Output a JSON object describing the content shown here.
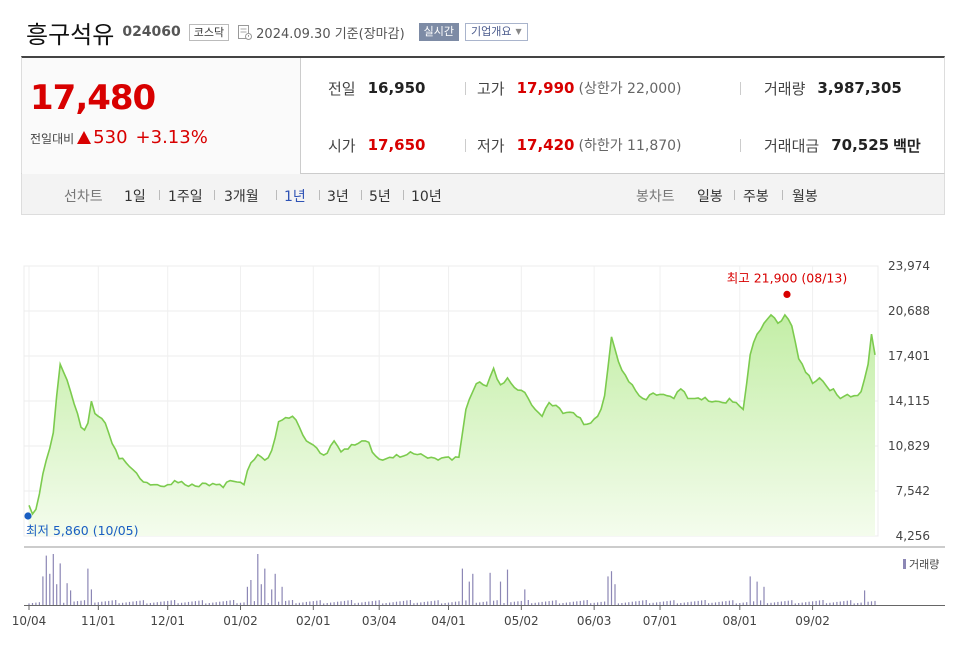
{
  "stock": {
    "name": "흥구석유",
    "code": "024060",
    "market": "코스닥",
    "date": "2024.09.30 기준(장마감)",
    "realtime_label": "실시간",
    "corp_info_label": "기업개요",
    "price": "17,480",
    "change_label": "전일대비",
    "change": "530",
    "change_pct": "+3.13%",
    "direction": "up"
  },
  "metrics": {
    "prev_close": {
      "label": "전일",
      "value": "16,950"
    },
    "open": {
      "label": "시가",
      "value": "17,650"
    },
    "high": {
      "label": "고가",
      "value": "17,990",
      "limit": "(상한가 22,000)"
    },
    "low": {
      "label": "저가",
      "value": "17,420",
      "limit": "(하한가 11,870)"
    },
    "volume": {
      "label": "거래량",
      "value": "3,987,305"
    },
    "amount": {
      "label": "거래대금",
      "value": "70,525",
      "unit": "백만"
    }
  },
  "tabs": {
    "line_label": "선차트",
    "periods": [
      "1일",
      "1주일",
      "3개월",
      "1년",
      "3년",
      "5년",
      "10년"
    ],
    "active_period": "1년",
    "candle_label": "봉차트",
    "candle_periods": [
      "일봉",
      "주봉",
      "월봉"
    ]
  },
  "colors": {
    "up": "#d80000",
    "low_marker": "#1a5ec2",
    "line": "#7ccb4e",
    "fill_top": "#c3eea6",
    "fill_bottom": "#f4fced",
    "volume_bar": "#8c87b5"
  },
  "chart_data": {
    "type": "area",
    "title": "",
    "xlabel": "",
    "ylabel": "",
    "ylim": [
      4256,
      23974
    ],
    "y_ticks": [
      "23,974",
      "20,688",
      "17,401",
      "14,115",
      "10,829",
      "7,542",
      "4,256"
    ],
    "x_ticks": [
      {
        "label": "10/04",
        "i": 0
      },
      {
        "label": "11/01",
        "i": 20
      },
      {
        "label": "12/01",
        "i": 40
      },
      {
        "label": "01/02",
        "i": 61
      },
      {
        "label": "02/01",
        "i": 82
      },
      {
        "label": "03/04",
        "i": 101
      },
      {
        "label": "04/01",
        "i": 121
      },
      {
        "label": "05/02",
        "i": 142
      },
      {
        "label": "06/03",
        "i": 163
      },
      {
        "label": "07/01",
        "i": 182
      },
      {
        "label": "08/01",
        "i": 205
      },
      {
        "label": "09/02",
        "i": 226
      }
    ],
    "x_count": 245,
    "grid": true,
    "keypoints": [
      [
        0,
        6500
      ],
      [
        1,
        5860
      ],
      [
        2,
        6200
      ],
      [
        4,
        8800
      ],
      [
        5,
        9800
      ],
      [
        7,
        11800
      ],
      [
        8,
        14500
      ],
      [
        9,
        16800
      ],
      [
        10,
        16200
      ],
      [
        12,
        14800
      ],
      [
        14,
        13200
      ],
      [
        15,
        12200
      ],
      [
        16,
        12000
      ],
      [
        17,
        12500
      ],
      [
        18,
        14100
      ],
      [
        19,
        13200
      ],
      [
        20,
        13000
      ],
      [
        22,
        12500
      ],
      [
        24,
        11000
      ],
      [
        26,
        9900
      ],
      [
        28,
        9600
      ],
      [
        30,
        9100
      ],
      [
        33,
        8200
      ],
      [
        36,
        8000
      ],
      [
        40,
        8000
      ],
      [
        42,
        8300
      ],
      [
        45,
        8000
      ],
      [
        48,
        7900
      ],
      [
        51,
        8100
      ],
      [
        54,
        8000
      ],
      [
        56,
        7800
      ],
      [
        58,
        8300
      ],
      [
        60,
        8200
      ],
      [
        62,
        8000
      ],
      [
        64,
        9600
      ],
      [
        66,
        10200
      ],
      [
        68,
        9800
      ],
      [
        70,
        10500
      ],
      [
        72,
        12600
      ],
      [
        74,
        12900
      ],
      [
        76,
        13000
      ],
      [
        78,
        12200
      ],
      [
        80,
        11200
      ],
      [
        82,
        10900
      ],
      [
        84,
        10300
      ],
      [
        86,
        10300
      ],
      [
        88,
        11200
      ],
      [
        90,
        10400
      ],
      [
        92,
        10600
      ],
      [
        94,
        10900
      ],
      [
        96,
        11200
      ],
      [
        98,
        11100
      ],
      [
        100,
        10100
      ],
      [
        102,
        9800
      ],
      [
        104,
        10000
      ],
      [
        106,
        10200
      ],
      [
        108,
        10100
      ],
      [
        110,
        10400
      ],
      [
        112,
        10200
      ],
      [
        114,
        10100
      ],
      [
        116,
        10000
      ],
      [
        118,
        9800
      ],
      [
        120,
        10000
      ],
      [
        122,
        9800
      ],
      [
        124,
        10000
      ],
      [
        126,
        13500
      ],
      [
        128,
        14800
      ],
      [
        130,
        15500
      ],
      [
        132,
        15200
      ],
      [
        134,
        16500
      ],
      [
        136,
        15300
      ],
      [
        138,
        15800
      ],
      [
        140,
        15100
      ],
      [
        142,
        14900
      ],
      [
        144,
        14300
      ],
      [
        146,
        13500
      ],
      [
        148,
        13000
      ],
      [
        150,
        14000
      ],
      [
        152,
        13800
      ],
      [
        154,
        13200
      ],
      [
        156,
        13300
      ],
      [
        158,
        13000
      ],
      [
        160,
        12400
      ],
      [
        162,
        12500
      ],
      [
        164,
        13000
      ],
      [
        166,
        14500
      ],
      [
        168,
        18800
      ],
      [
        170,
        17000
      ],
      [
        172,
        16000
      ],
      [
        174,
        15300
      ],
      [
        176,
        14500
      ],
      [
        178,
        14200
      ],
      [
        180,
        14700
      ],
      [
        182,
        14600
      ],
      [
        184,
        14500
      ],
      [
        186,
        14300
      ],
      [
        188,
        15000
      ],
      [
        190,
        14300
      ],
      [
        192,
        14300
      ],
      [
        194,
        14200
      ],
      [
        196,
        14100
      ],
      [
        198,
        14100
      ],
      [
        200,
        14000
      ],
      [
        202,
        14300
      ],
      [
        204,
        14000
      ],
      [
        206,
        13500
      ],
      [
        208,
        17500
      ],
      [
        210,
        19000
      ],
      [
        212,
        19800
      ],
      [
        214,
        20400
      ],
      [
        216,
        19800
      ],
      [
        218,
        20400
      ],
      [
        220,
        19600
      ],
      [
        222,
        17200
      ],
      [
        224,
        16200
      ],
      [
        226,
        15400
      ],
      [
        228,
        15800
      ],
      [
        230,
        15200
      ],
      [
        232,
        15000
      ],
      [
        234,
        14300
      ],
      [
        236,
        14600
      ],
      [
        238,
        14500
      ],
      [
        240,
        14800
      ],
      [
        242,
        16800
      ],
      [
        243,
        19000
      ],
      [
        244,
        17480
      ]
    ],
    "high": {
      "label": "최고 21,900 (08/13)",
      "i": 214,
      "value": 21900
    },
    "low": {
      "label": "최저 5,860 (10/05)",
      "i": 1,
      "value": 5860
    },
    "volume": {
      "label": "거래량",
      "spikes": [
        [
          4,
          0.55
        ],
        [
          5,
          0.95
        ],
        [
          6,
          0.6
        ],
        [
          7,
          0.98
        ],
        [
          8,
          0.4
        ],
        [
          9,
          0.8
        ],
        [
          11,
          0.42
        ],
        [
          12,
          0.28
        ],
        [
          17,
          0.7
        ],
        [
          18,
          0.3
        ],
        [
          63,
          0.35
        ],
        [
          64,
          0.48
        ],
        [
          66,
          0.98
        ],
        [
          67,
          0.4
        ],
        [
          68,
          0.7
        ],
        [
          70,
          0.3
        ],
        [
          71,
          0.6
        ],
        [
          73,
          0.35
        ],
        [
          125,
          0.7
        ],
        [
          127,
          0.45
        ],
        [
          128,
          0.6
        ],
        [
          133,
          0.62
        ],
        [
          136,
          0.45
        ],
        [
          138,
          0.68
        ],
        [
          143,
          0.3
        ],
        [
          167,
          0.55
        ],
        [
          168,
          0.65
        ],
        [
          169,
          0.4
        ],
        [
          208,
          0.55
        ],
        [
          210,
          0.45
        ],
        [
          212,
          0.35
        ],
        [
          241,
          0.28
        ]
      ]
    }
  }
}
